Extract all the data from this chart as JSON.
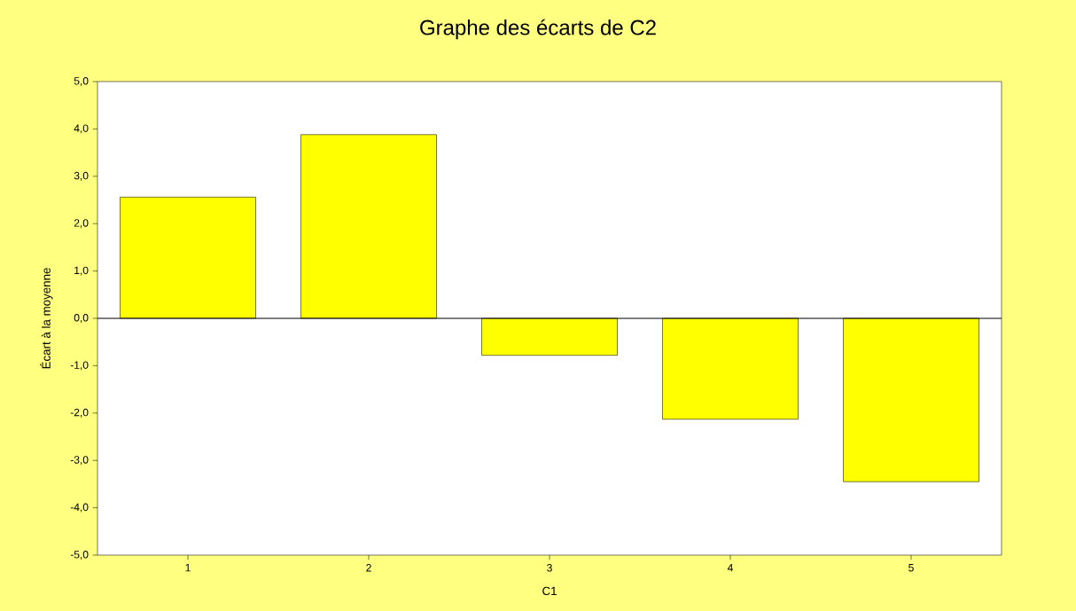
{
  "chart_data": {
    "type": "bar",
    "title": "Graphe des écarts de C2",
    "xlabel": "C1",
    "ylabel": "Écart à la moyenne",
    "categories": [
      "1",
      "2",
      "3",
      "4",
      "5"
    ],
    "values": [
      2.56,
      3.88,
      -0.78,
      -2.13,
      -3.45
    ],
    "color": "#ffff00",
    "ylim": [
      -5,
      5
    ],
    "yticks": [
      {
        "value": -5,
        "label": "-5,0"
      },
      {
        "value": -4,
        "label": "-4,0"
      },
      {
        "value": -3,
        "label": "-3,0"
      },
      {
        "value": -2,
        "label": "-2,0"
      },
      {
        "value": -1,
        "label": "-1,0"
      },
      {
        "value": 0,
        "label": "0,0"
      },
      {
        "value": 1,
        "label": "1,0"
      },
      {
        "value": 2,
        "label": "2,0"
      },
      {
        "value": 3,
        "label": "3,0"
      },
      {
        "value": 4,
        "label": "4,0"
      },
      {
        "value": 5,
        "label": "5,0"
      }
    ],
    "ref_lines": [
      {
        "axis": "y",
        "value": 0
      }
    ]
  }
}
